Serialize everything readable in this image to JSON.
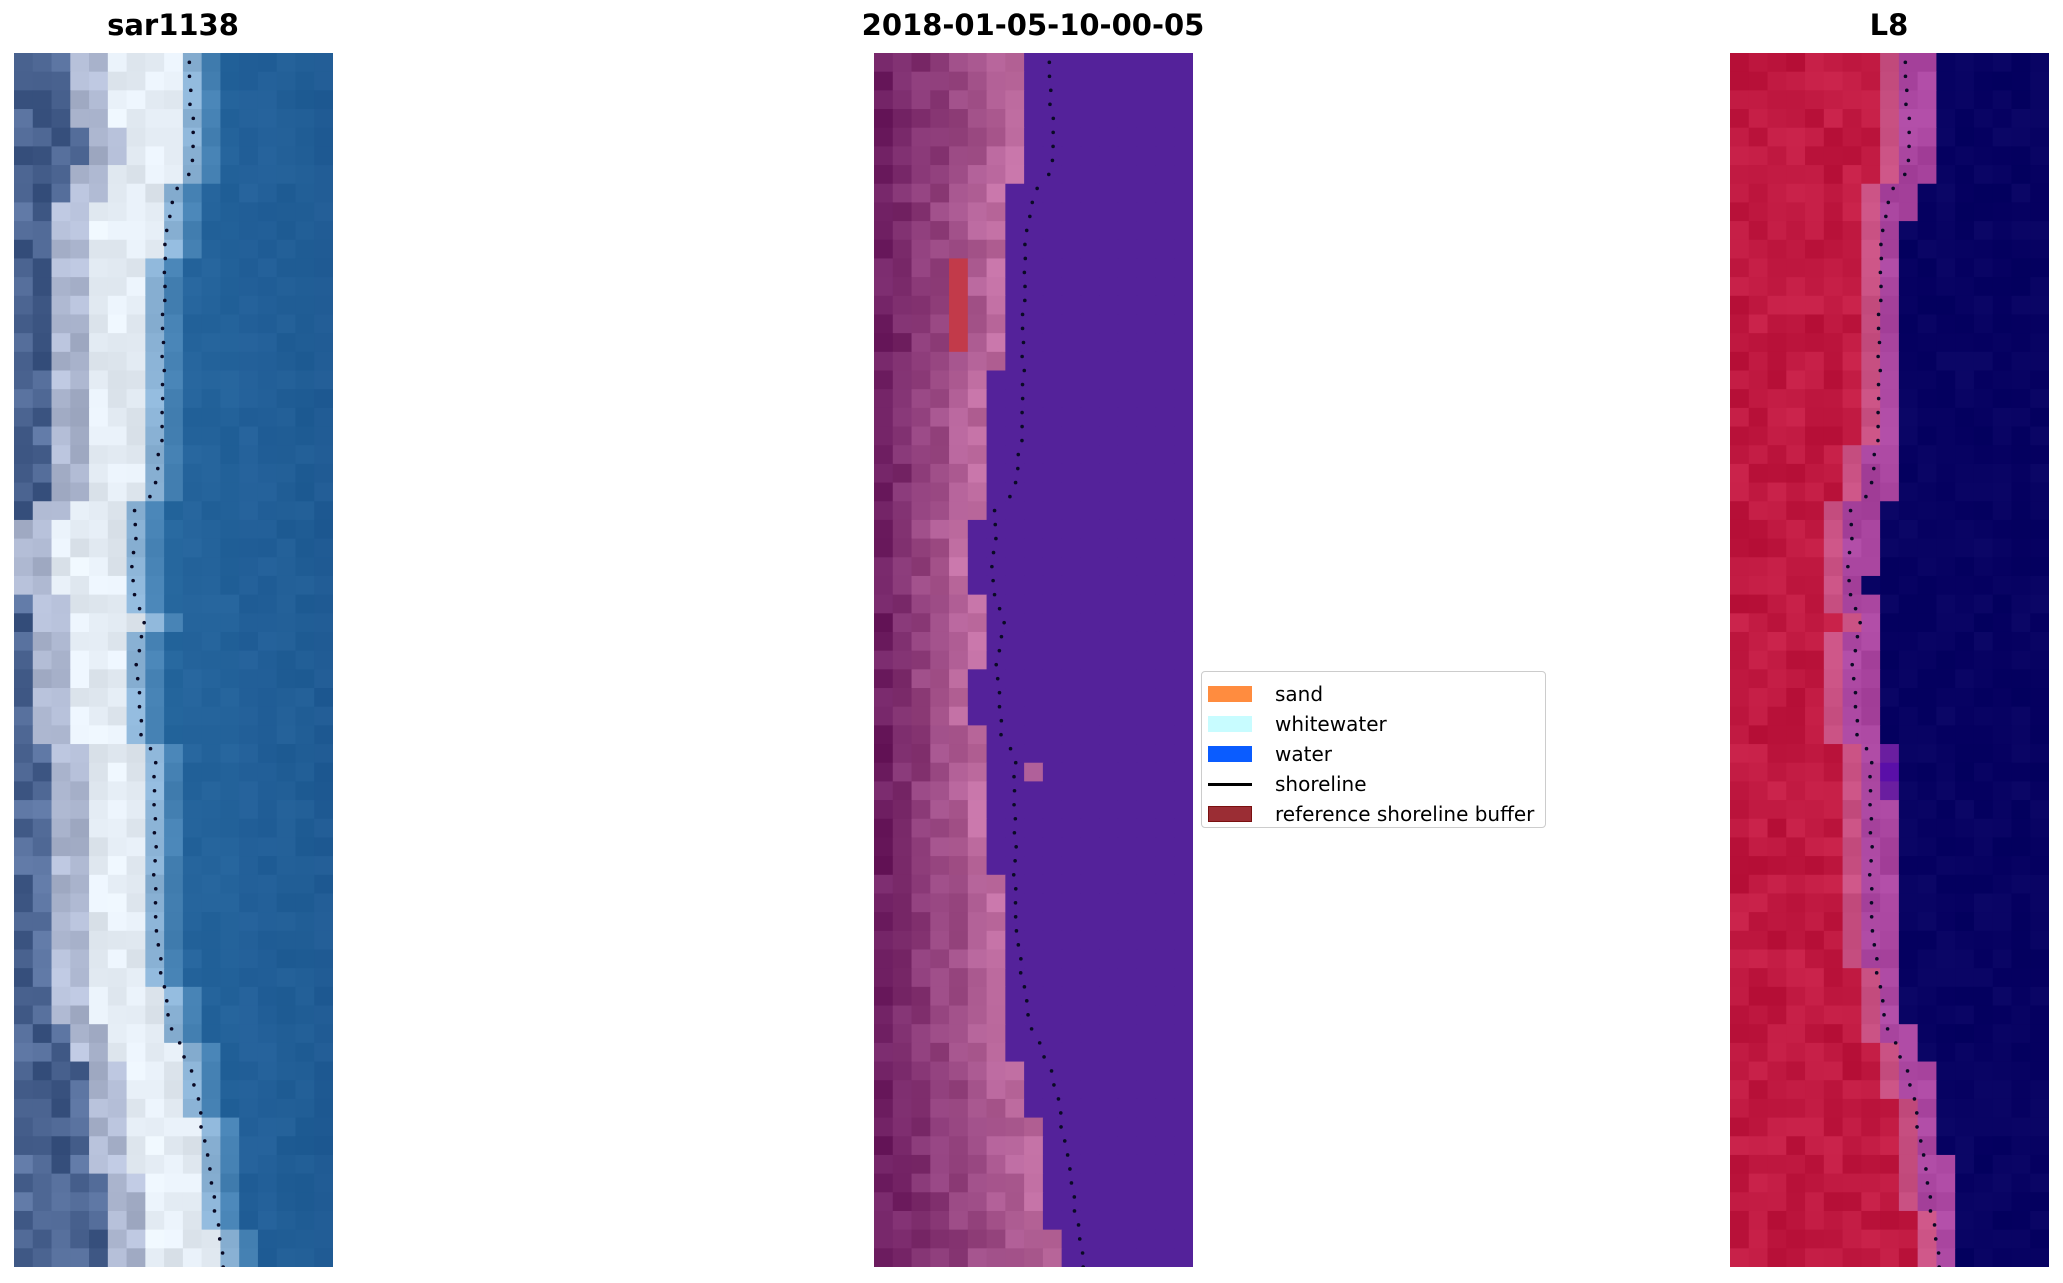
{
  "panels": [
    {
      "title": "sar1138",
      "type": "rgb-image"
    },
    {
      "title": "2018-01-05-10-00-05",
      "type": "classified-image"
    },
    {
      "title": "L8",
      "type": "false-color-image"
    }
  ],
  "legend": {
    "items": [
      {
        "label": "sand",
        "color": "#ff8c3f",
        "kind": "patch"
      },
      {
        "label": "whitewater",
        "color": "#c8fcff",
        "kind": "patch"
      },
      {
        "label": "water",
        "color": "#0a5cff",
        "kind": "patch"
      },
      {
        "label": "shoreline",
        "color": "#000000",
        "kind": "line"
      },
      {
        "label": "reference shoreline buffer",
        "color": "#9b2d34",
        "kind": "patch"
      }
    ]
  },
  "colors": {
    "sar_water": "#22609a",
    "class_water": "#54229a",
    "class_buffer": "#c23a4a",
    "l8_land": "#c0173f",
    "l8_water": "#7e2a98"
  }
}
